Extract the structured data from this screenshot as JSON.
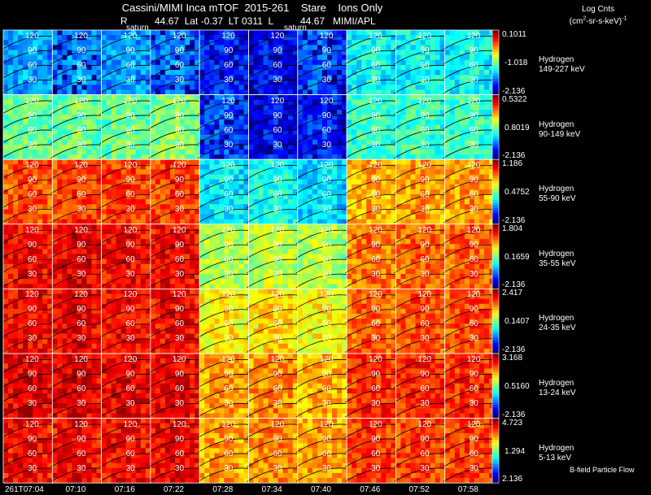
{
  "header": {
    "title": "Cassini/MIMI Inca mTOF  2015-261    Stare    Ions Only",
    "subtitle": "R          44.67  Lat -0.37  LT 0311  L          44.67   MIMI/APL",
    "saturn_label": "saturn",
    "colorbar_title": "Log Cnts",
    "colorbar_units_pre": "(cm",
    "colorbar_units_sup": "2",
    "colorbar_units_post": "-sr-s-keV)",
    "colorbar_units_tail_sup": "-1",
    "footer_note": "B-field Particle Flow"
  },
  "chart_data": {
    "type": "heatmap",
    "time_ticks": [
      "261T07:04",
      "07:10",
      "07:16",
      "07:22",
      "07:28",
      "07:34",
      "07:40",
      "07:46",
      "07:52",
      "07:58"
    ],
    "contour_labels": [
      "120",
      "90",
      "60",
      "30"
    ],
    "rows": [
      {
        "species": "Hydrogen",
        "energy": "149-227 keV",
        "cmax": "0.1011",
        "cmid": "-1.018",
        "cmin": "-2.136",
        "levels": [
          0.3,
          0.28,
          0.3,
          0.26,
          0.18,
          0.15,
          0.22,
          0.4,
          0.4,
          0.4
        ]
      },
      {
        "species": "Hydrogen",
        "energy": "90-149 keV",
        "cmax": "0.5322",
        "cmid": "0.8019",
        "cmin": "-2.136",
        "levels": [
          0.5,
          0.5,
          0.5,
          0.52,
          0.22,
          0.15,
          0.18,
          0.45,
          0.45,
          0.45
        ]
      },
      {
        "species": "Hydrogen",
        "energy": "55-90 keV",
        "cmax": "1.186",
        "cmid": "0.4752",
        "cmin": "-2.136",
        "levels": [
          0.82,
          0.84,
          0.84,
          0.84,
          0.38,
          0.42,
          0.36,
          0.72,
          0.74,
          0.74
        ]
      },
      {
        "species": "Hydrogen",
        "energy": "35-55 keV",
        "cmax": "1.804",
        "cmid": "0.1659",
        "cmin": "-2.136",
        "levels": [
          0.9,
          0.92,
          0.9,
          0.9,
          0.58,
          0.58,
          0.56,
          0.78,
          0.8,
          0.8
        ]
      },
      {
        "species": "Hydrogen",
        "energy": "24-35 keV",
        "cmax": "2.417",
        "cmid": "0.1407",
        "cmin": "-2.136",
        "levels": [
          0.9,
          0.91,
          0.9,
          0.9,
          0.66,
          0.68,
          0.64,
          0.8,
          0.82,
          0.82
        ]
      },
      {
        "species": "Hydrogen",
        "energy": "13-24 keV",
        "cmax": "3.168",
        "cmid": "0.5160",
        "cmin": "-2.136",
        "levels": [
          0.92,
          0.92,
          0.92,
          0.91,
          0.74,
          0.76,
          0.72,
          0.86,
          0.86,
          0.86
        ]
      },
      {
        "species": "Hydrogen",
        "energy": "5-13 keV",
        "cmax": "4.723",
        "cmid": "1.294",
        "cmin": "2.136",
        "levels": [
          0.9,
          0.9,
          0.9,
          0.9,
          0.74,
          0.76,
          0.74,
          0.84,
          0.84,
          0.84
        ]
      }
    ]
  }
}
